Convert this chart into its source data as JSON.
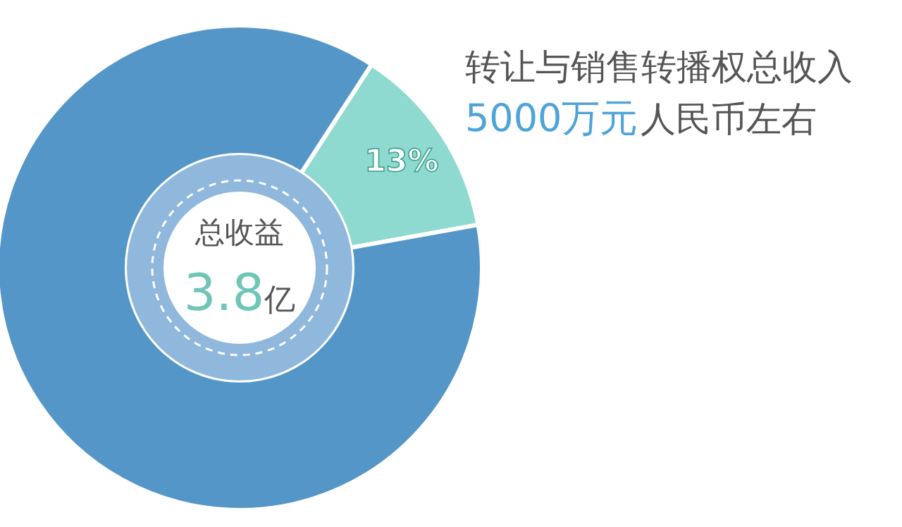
{
  "chart_data": {
    "type": "donut",
    "categories": [
      null,
      null
    ],
    "values": [
      13,
      87
    ],
    "colors": [
      "#8fdad0",
      "#5596c8"
    ],
    "value_labels": [
      "13%",
      null
    ],
    "annotations": [
      "转让与销售转播权总收入",
      "5000万元",
      "人民币左右",
      "总收益",
      "3.8亿"
    ]
  }
}
